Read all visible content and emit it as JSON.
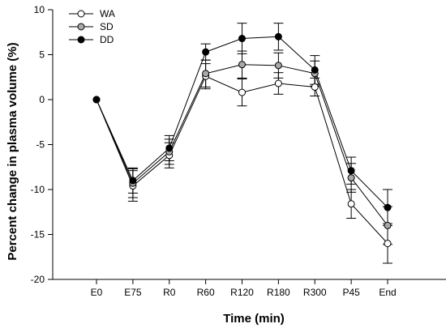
{
  "chart_data": {
    "type": "line",
    "title": "",
    "xlabel": "Time (min)",
    "ylabel": "Percent change in plasma volume (%)",
    "ylim": [
      -20,
      10
    ],
    "yticks": [
      10,
      5,
      0,
      -5,
      -10,
      -15,
      -20
    ],
    "categories": [
      "E0",
      "E75",
      "R0",
      "R60",
      "R120",
      "R180",
      "R300",
      "P45",
      "End"
    ],
    "grid": false,
    "legend_position": "top-left",
    "series": [
      {
        "name": "WA",
        "marker": "open-circle",
        "fill": "#ffffff",
        "values": [
          0,
          -9.6,
          -6.2,
          2.6,
          0.8,
          1.8,
          1.4,
          -11.6,
          -16
        ],
        "errors": [
          0,
          1.7,
          1.4,
          1.4,
          1.5,
          1.2,
          1.0,
          1.6,
          2.2
        ]
      },
      {
        "name": "SD",
        "marker": "gray-circle",
        "fill": "#a9a9a9",
        "values": [
          0,
          -9.3,
          -5.8,
          2.9,
          3.9,
          3.8,
          2.9,
          -8.7,
          -14
        ],
        "errors": [
          0,
          1.6,
          1.4,
          1.5,
          1.5,
          1.4,
          1.4,
          1.6,
          2.1
        ]
      },
      {
        "name": "DD",
        "marker": "filled-circle",
        "fill": "#000000",
        "values": [
          0,
          -9,
          -5.4,
          5.3,
          6.8,
          7,
          3.3,
          -7.9,
          -12
        ],
        "errors": [
          0,
          1.4,
          1.4,
          0.9,
          1.7,
          1.5,
          1.6,
          1.5,
          2.0
        ]
      }
    ]
  }
}
